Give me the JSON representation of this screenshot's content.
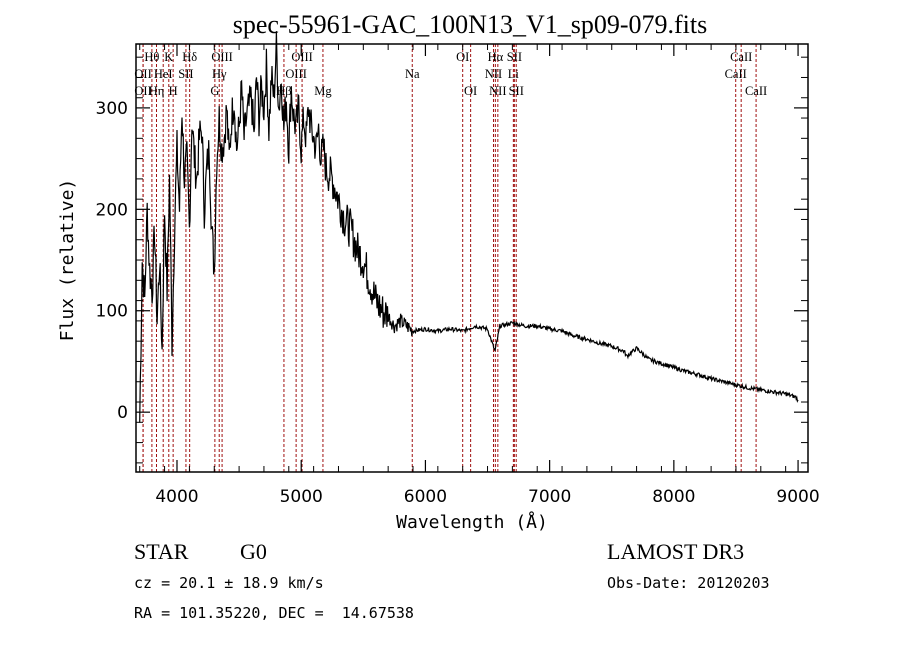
{
  "chart_data": {
    "type": "line",
    "title": "spec-55961-GAC_100N13_V1_sp09-079.fits",
    "xlabel": "Wavelength (Å)",
    "ylabel": "Flux (relative)",
    "xlim": [
      3670,
      9080
    ],
    "ylim": [
      -59,
      363
    ],
    "xticks": [
      4000,
      5000,
      6000,
      7000,
      8000,
      9000
    ],
    "yticks": [
      0,
      100,
      200,
      300
    ],
    "grid": false,
    "legend": "none",
    "series": [
      {
        "name": "spectrum",
        "color": "#000000",
        "x": [
          3700,
          3720,
          3740,
          3760,
          3780,
          3800,
          3820,
          3840,
          3860,
          3880,
          3900,
          3920,
          3940,
          3960,
          3980,
          4000,
          4020,
          4040,
          4060,
          4080,
          4100,
          4120,
          4140,
          4160,
          4180,
          4200,
          4220,
          4240,
          4260,
          4280,
          4300,
          4320,
          4340,
          4360,
          4380,
          4400,
          4420,
          4440,
          4460,
          4480,
          4500,
          4520,
          4540,
          4560,
          4580,
          4600,
          4620,
          4640,
          4660,
          4680,
          4700,
          4720,
          4740,
          4760,
          4780,
          4800,
          4820,
          4840,
          4860,
          4880,
          4900,
          4920,
          4940,
          4960,
          4980,
          5000,
          5020,
          5040,
          5060,
          5080,
          5100,
          5120,
          5140,
          5160,
          5180,
          5200,
          5250,
          5300,
          5350,
          5400,
          5450,
          5500,
          5550,
          5600,
          5650,
          5700,
          5750,
          5800,
          5850,
          5900,
          6000,
          6100,
          6200,
          6300,
          6400,
          6500,
          6560,
          6600,
          6700,
          6800,
          6900,
          7000,
          7100,
          7200,
          7300,
          7400,
          7500,
          7600,
          7620,
          7700,
          7800,
          7900,
          8000,
          8100,
          8200,
          8300,
          8400,
          8500,
          8600,
          8700,
          8800,
          8900,
          8980,
          9000
        ],
        "y": [
          -10,
          150,
          110,
          200,
          140,
          120,
          180,
          90,
          150,
          60,
          200,
          120,
          230,
          70,
          180,
          260,
          200,
          300,
          230,
          250,
          180,
          290,
          250,
          230,
          270,
          280,
          200,
          240,
          260,
          180,
          140,
          250,
          290,
          260,
          270,
          300,
          250,
          290,
          310,
          260,
          280,
          320,
          270,
          290,
          300,
          310,
          270,
          330,
          290,
          320,
          300,
          340,
          280,
          330,
          310,
          360,
          300,
          330,
          280,
          310,
          260,
          320,
          290,
          280,
          300,
          260,
          290,
          270,
          300,
          280,
          270,
          260,
          280,
          250,
          260,
          240,
          230,
          210,
          190,
          180,
          160,
          150,
          130,
          110,
          100,
          95,
          85,
          90,
          85,
          80,
          82,
          80,
          82,
          80,
          85,
          82,
          60,
          85,
          88,
          85,
          85,
          82,
          80,
          75,
          72,
          68,
          65,
          60,
          55,
          63,
          52,
          48,
          44,
          40,
          37,
          33,
          30,
          27,
          24,
          22,
          20,
          18,
          15,
          12
        ]
      }
    ],
    "emission_lines": [
      {
        "label": "OII",
        "wavelength": 3727,
        "row": 3
      },
      {
        "label": "Hθ",
        "wavelength": 3798,
        "row": 1
      },
      {
        "label": "OII",
        "wavelength": 3727,
        "row": 2
      },
      {
        "label": "Hη",
        "wavelength": 3835,
        "row": 3
      },
      {
        "label": "HeI",
        "wavelength": 3889,
        "row": 2
      },
      {
        "label": "K",
        "wavelength": 3934,
        "row": 1
      },
      {
        "label": "H",
        "wavelength": 3969,
        "row": 3
      },
      {
        "label": "SII",
        "wavelength": 4072,
        "row": 2
      },
      {
        "label": "Hδ",
        "wavelength": 4102,
        "row": 1
      },
      {
        "label": "G",
        "wavelength": 4305,
        "row": 3
      },
      {
        "label": "Hγ",
        "wavelength": 4340,
        "row": 2
      },
      {
        "label": "OIII",
        "wavelength": 4363,
        "row": 1
      },
      {
        "label": "Hβ",
        "wavelength": 4861,
        "row": 3
      },
      {
        "label": "OIII",
        "wavelength": 4959,
        "row": 2
      },
      {
        "label": "OIII",
        "wavelength": 5007,
        "row": 1
      },
      {
        "label": "Mg",
        "wavelength": 5175,
        "row": 3
      },
      {
        "label": "Na",
        "wavelength": 5894,
        "row": 2
      },
      {
        "label": "OI",
        "wavelength": 6300,
        "row": 1
      },
      {
        "label": "OI",
        "wavelength": 6364,
        "row": 3
      },
      {
        "label": "NII",
        "wavelength": 6548,
        "row": 2
      },
      {
        "label": "Hα",
        "wavelength": 6563,
        "row": 1
      },
      {
        "label": "NII",
        "wavelength": 6583,
        "row": 3
      },
      {
        "label": "Li",
        "wavelength": 6708,
        "row": 2
      },
      {
        "label": "SII",
        "wavelength": 6716,
        "row": 1
      },
      {
        "label": "SII",
        "wavelength": 6731,
        "row": 3
      },
      {
        "label": "CaII",
        "wavelength": 8498,
        "row": 2
      },
      {
        "label": "CaII",
        "wavelength": 8542,
        "row": 1
      },
      {
        "label": "CaII",
        "wavelength": 8662,
        "row": 3
      }
    ],
    "line_color": "#a01010"
  },
  "info": {
    "object_class": "STAR",
    "subclass": "G0",
    "redshift": "cz = 20.1 ± 18.9 km/s",
    "coords": "RA = 101.35220, DEC =  14.67538",
    "survey": "LAMOST DR3",
    "obs_date": "Obs-Date: 20120203"
  }
}
